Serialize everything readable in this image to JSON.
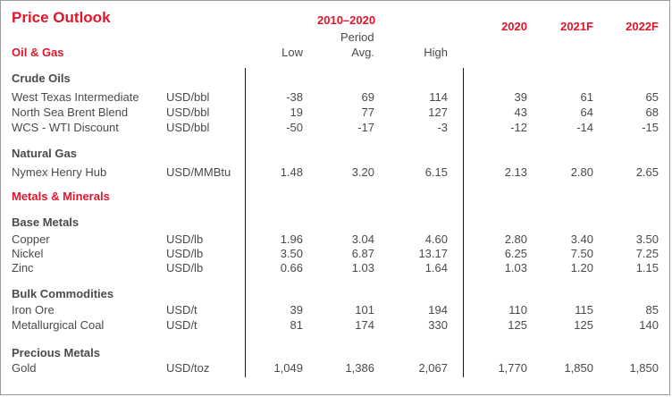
{
  "title": "Price Outlook",
  "header": {
    "period_range": "2010–2020",
    "period_label": "Period",
    "low": "Low",
    "avg": "Avg.",
    "high": "High",
    "y2020": "2020",
    "y2021": "2021F",
    "y2022": "2022F"
  },
  "sections": {
    "oil_gas": "Oil & Gas",
    "metals": "Metals & Minerals"
  },
  "groups": {
    "crude": "Crude Oils",
    "natgas": "Natural Gas",
    "base": "Base Metals",
    "bulk": "Bulk Commodities",
    "precious": "Precious Metals"
  },
  "rows": {
    "wti": {
      "name": "West Texas Intermediate",
      "unit": "USD/bbl",
      "low": "-38",
      "avg": "69",
      "high": "114",
      "y2020": "39",
      "y2021": "61",
      "y2022": "65"
    },
    "brent": {
      "name": "North Sea Brent Blend",
      "unit": "USD/bbl",
      "low": "19",
      "avg": "77",
      "high": "127",
      "y2020": "43",
      "y2021": "64",
      "y2022": "68"
    },
    "wcs": {
      "name": "WCS - WTI Discount",
      "unit": "USD/bbl",
      "low": "-50",
      "avg": "-17",
      "high": "-3",
      "y2020": "-12",
      "y2021": "-14",
      "y2022": "-15"
    },
    "henry": {
      "name": "Nymex Henry Hub",
      "unit": "USD/MMBtu",
      "low": "1.48",
      "avg": "3.20",
      "high": "6.15",
      "y2020": "2.13",
      "y2021": "2.80",
      "y2022": "2.65"
    },
    "copper": {
      "name": "Copper",
      "unit": "USD/lb",
      "low": "1.96",
      "avg": "3.04",
      "high": "4.60",
      "y2020": "2.80",
      "y2021": "3.40",
      "y2022": "3.50"
    },
    "nickel": {
      "name": "Nickel",
      "unit": "USD/lb",
      "low": "3.50",
      "avg": "6.87",
      "high": "13.17",
      "y2020": "6.25",
      "y2021": "7.50",
      "y2022": "7.25"
    },
    "zinc": {
      "name": "Zinc",
      "unit": "USD/lb",
      "low": "0.66",
      "avg": "1.03",
      "high": "1.64",
      "y2020": "1.03",
      "y2021": "1.20",
      "y2022": "1.15"
    },
    "iron": {
      "name": "Iron Ore",
      "unit": "USD/t",
      "low": "39",
      "avg": "101",
      "high": "194",
      "y2020": "110",
      "y2021": "115",
      "y2022": "85"
    },
    "metcoal": {
      "name": "Metallurgical Coal",
      "unit": "USD/t",
      "low": "81",
      "avg": "174",
      "high": "330",
      "y2020": "125",
      "y2021": "125",
      "y2022": "140"
    },
    "gold": {
      "name": "Gold",
      "unit": "USD/toz",
      "low": "1,049",
      "avg": "1,386",
      "high": "2,067",
      "y2020": "1,770",
      "y2021": "1,850",
      "y2022": "1,850"
    }
  }
}
